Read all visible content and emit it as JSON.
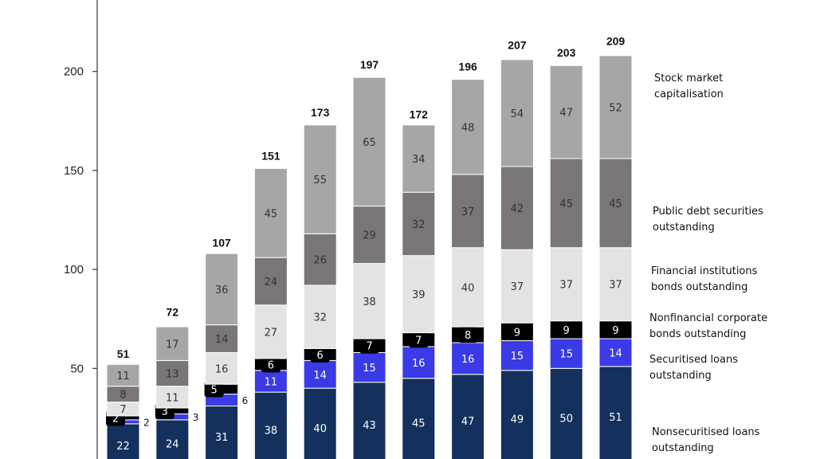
{
  "chart_data": {
    "type": "bar",
    "stacked": true,
    "ylim": [
      0,
      235
    ],
    "yticks": [
      50,
      100,
      150,
      200
    ],
    "totals": [
      51,
      72,
      107,
      151,
      173,
      197,
      172,
      196,
      207,
      203,
      209
    ],
    "series": [
      {
        "name": "Nonsecuritised loans outstanding",
        "color": "#14305c",
        "label_light": true,
        "values": [
          22,
          24,
          31,
          38,
          40,
          43,
          45,
          47,
          49,
          50,
          51
        ]
      },
      {
        "name": "Securitised loans outstanding",
        "color": "#3a3ae6",
        "label_light": true,
        "values": [
          2,
          3,
          6,
          11,
          14,
          15,
          16,
          16,
          15,
          15,
          14
        ]
      },
      {
        "name": "Nonfinancial corporate bonds outstanding",
        "color": "#000000",
        "label_light": true,
        "values": [
          2,
          3,
          5,
          6,
          6,
          7,
          7,
          8,
          9,
          9,
          9
        ]
      },
      {
        "name": "Financial institutions bonds outstanding",
        "color": "#e3e3e3",
        "label_light": false,
        "values": [
          7,
          11,
          16,
          27,
          32,
          38,
          39,
          40,
          37,
          37,
          37
        ]
      },
      {
        "name": "Public debt securities outstanding",
        "color": "#7a7678",
        "label_light": false,
        "values": [
          8,
          13,
          14,
          24,
          26,
          29,
          32,
          37,
          42,
          45,
          45
        ]
      },
      {
        "name": "Stock market capitalisation",
        "color": "#a6a6a6",
        "label_light": false,
        "values": [
          11,
          17,
          36,
          45,
          55,
          65,
          34,
          48,
          54,
          47,
          52
        ]
      }
    ],
    "outside_labels": [
      {
        "bar": 0,
        "text": "2"
      },
      {
        "bar": 1,
        "text": "3"
      },
      {
        "bar": 2,
        "text": "6"
      }
    ],
    "legend": [
      {
        "lines": [
          "Stock market",
          "capitalisation"
        ]
      },
      {
        "lines": [
          "Public debt securities",
          "outstanding"
        ]
      },
      {
        "lines": [
          "Financial institutions",
          "bonds outstanding"
        ]
      },
      {
        "lines": [
          "Nonfinancial corporate",
          "bonds outstanding"
        ]
      },
      {
        "lines": [
          "Securitised loans",
          "outstanding"
        ]
      },
      {
        "lines": [
          "Nonsecuritised loans",
          "outstanding"
        ]
      }
    ]
  }
}
